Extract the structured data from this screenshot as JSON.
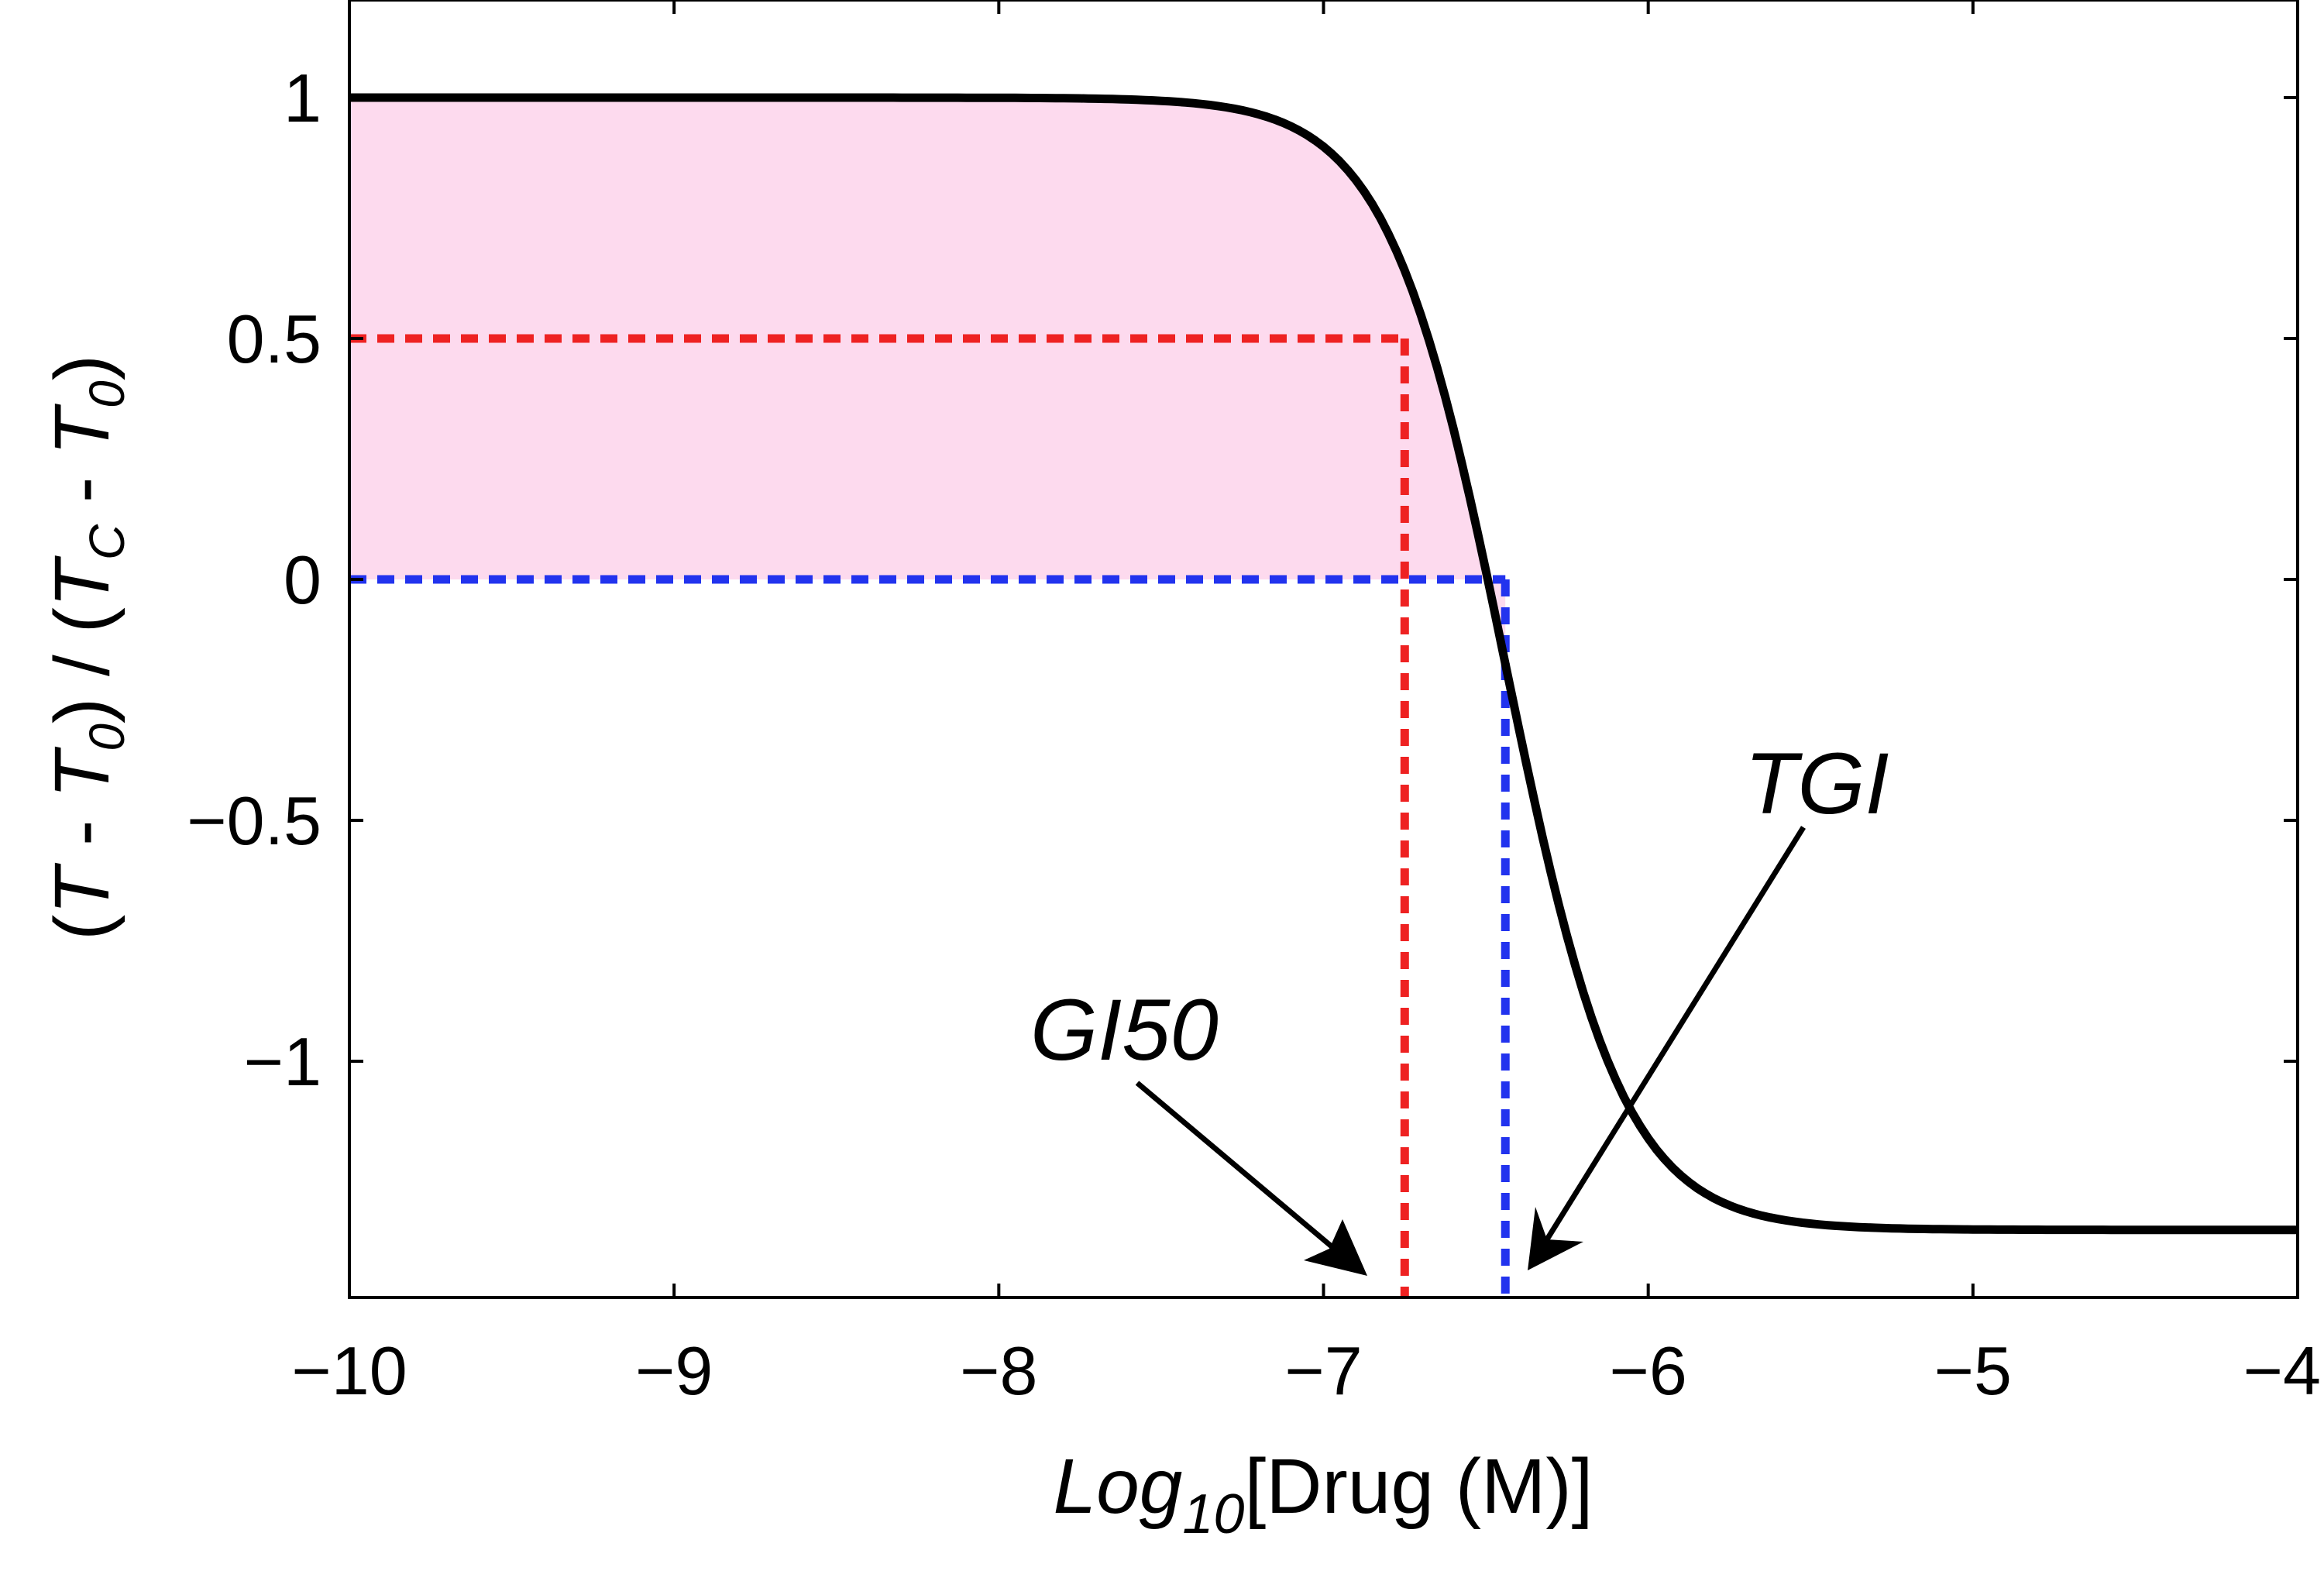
{
  "chart_data": {
    "type": "line",
    "title": "",
    "xlabel": {
      "italic": "Log",
      "sub": "10",
      "rest": "[Drug (M)]"
    },
    "ylabel": {
      "p1": "(",
      "T1": "T",
      "m1": " - ",
      "T2": "T",
      "s2": "0",
      "p2": ") / (",
      "T3": "T",
      "s3": "C",
      "m2": " - ",
      "T4": "T",
      "s4": "0",
      "p3": ")"
    },
    "xlim": [
      -10,
      -4
    ],
    "ylim": [
      -1.5,
      1.2
    ],
    "xticks": [
      -10,
      -9,
      -8,
      -7,
      -6,
      -5,
      -4
    ],
    "xtick_labels": [
      "−10",
      "−9",
      "−8",
      "−7",
      "−6",
      "−5",
      "−4"
    ],
    "yticks": [
      1,
      0.5,
      0,
      -0.5,
      -1
    ],
    "ytick_labels": [
      "1",
      "0.5",
      "0",
      "−0.5",
      "−1"
    ],
    "grid": false,
    "curve": {
      "top": 1.0,
      "bottom": -1.35,
      "log_x0": -6.44,
      "slope": 2.4
    },
    "markers": [
      {
        "name": "GI50",
        "x": -6.75,
        "y": 0.5,
        "color": "#ee2222"
      },
      {
        "name": "TGI",
        "x": -6.44,
        "y": 0,
        "color": "#2233ee"
      }
    ],
    "annotations": {
      "gi50": {
        "label": "GI50"
      },
      "tgi": {
        "label": "TGI"
      }
    },
    "fill_color": "#fddaee"
  }
}
